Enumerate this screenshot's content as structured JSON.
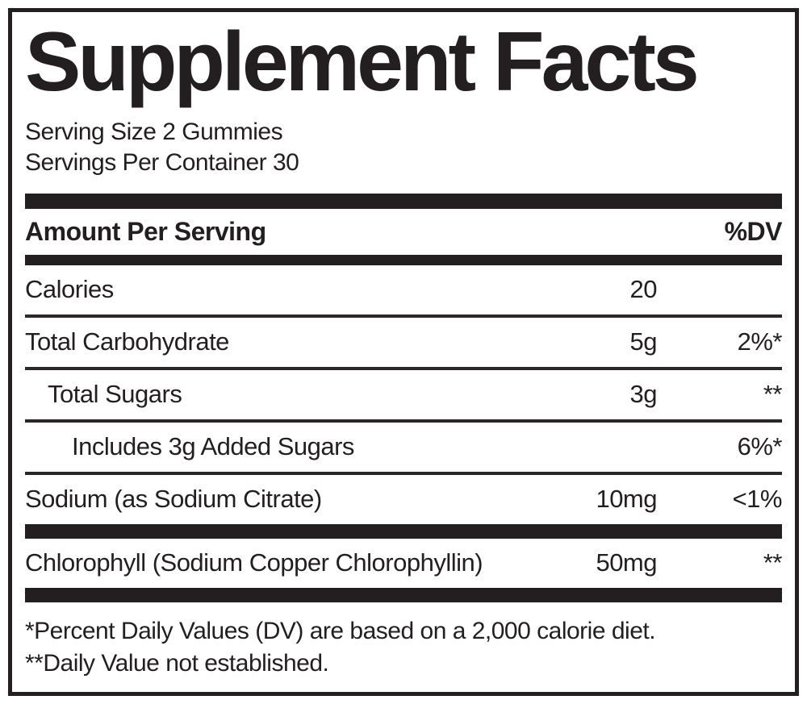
{
  "label": {
    "title": "Supplement Facts",
    "serving_size": "Serving Size 2 Gummies",
    "servings_per_container": "Servings Per Container 30",
    "header": {
      "amount_per_serving": "Amount Per Serving",
      "dv": "%DV"
    },
    "rows": [
      {
        "name": "Calories",
        "amount": "20",
        "dv": ""
      },
      {
        "name": "Total Carbohydrate",
        "amount": "5g",
        "dv": "2%*"
      },
      {
        "name": "Total Sugars",
        "amount": "3g",
        "dv": "**"
      },
      {
        "name": "Includes 3g Added Sugars",
        "amount": "",
        "dv": "6%*"
      },
      {
        "name": "Sodium (as Sodium Citrate)",
        "amount": "10mg",
        "dv": "<1%"
      }
    ],
    "other_row": {
      "name": "Chlorophyll (Sodium Copper Chlorophyllin)",
      "amount": "50mg",
      "dv": "**"
    },
    "footnotes": [
      "*Percent Daily Values (DV) are based on a 2,000 calorie diet.",
      "**Daily Value not established."
    ],
    "colors": {
      "ink": "#231f20",
      "background": "#ffffff"
    }
  }
}
